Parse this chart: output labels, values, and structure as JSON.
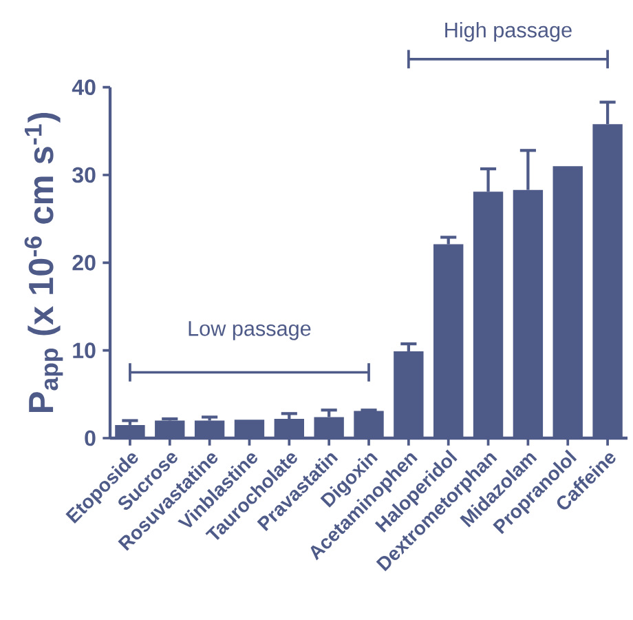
{
  "chart_data": {
    "type": "bar",
    "ylabel": "P$_{app}$ (x 10$^{-6}$ cm s$^{-1}$)",
    "categories": [
      "Etoposide",
      "Sucrose",
      "Rosuvastatine",
      "Vinblastine",
      "Taurocholate",
      "Pravastatin",
      "Digoxin",
      "Acetaminophen",
      "Haloperidol",
      "Dextrometorphan",
      "Midazolam",
      "Propranolol",
      "Caffeine"
    ],
    "values": [
      1.5,
      2.0,
      2.0,
      2.1,
      2.2,
      2.4,
      3.1,
      9.9,
      22.1,
      28.1,
      28.3,
      31.0,
      35.8
    ],
    "errors": [
      [
        1.5,
        2.0
      ],
      [
        2.0,
        2.2
      ],
      [
        2.0,
        2.4
      ],
      null,
      [
        2.2,
        2.8
      ],
      [
        2.4,
        3.2
      ],
      [
        3.1,
        3.2
      ],
      [
        9.9,
        10.75
      ],
      [
        22.1,
        22.9
      ],
      [
        28.1,
        30.7
      ],
      [
        28.3,
        32.8
      ],
      null,
      [
        35.8,
        38.3
      ]
    ],
    "color": "#4e5a87",
    "ylim": [
      0,
      40
    ],
    "yticks": [
      0,
      10,
      20,
      30,
      40
    ],
    "annotations": [
      "Low passage",
      "High passage"
    ]
  }
}
